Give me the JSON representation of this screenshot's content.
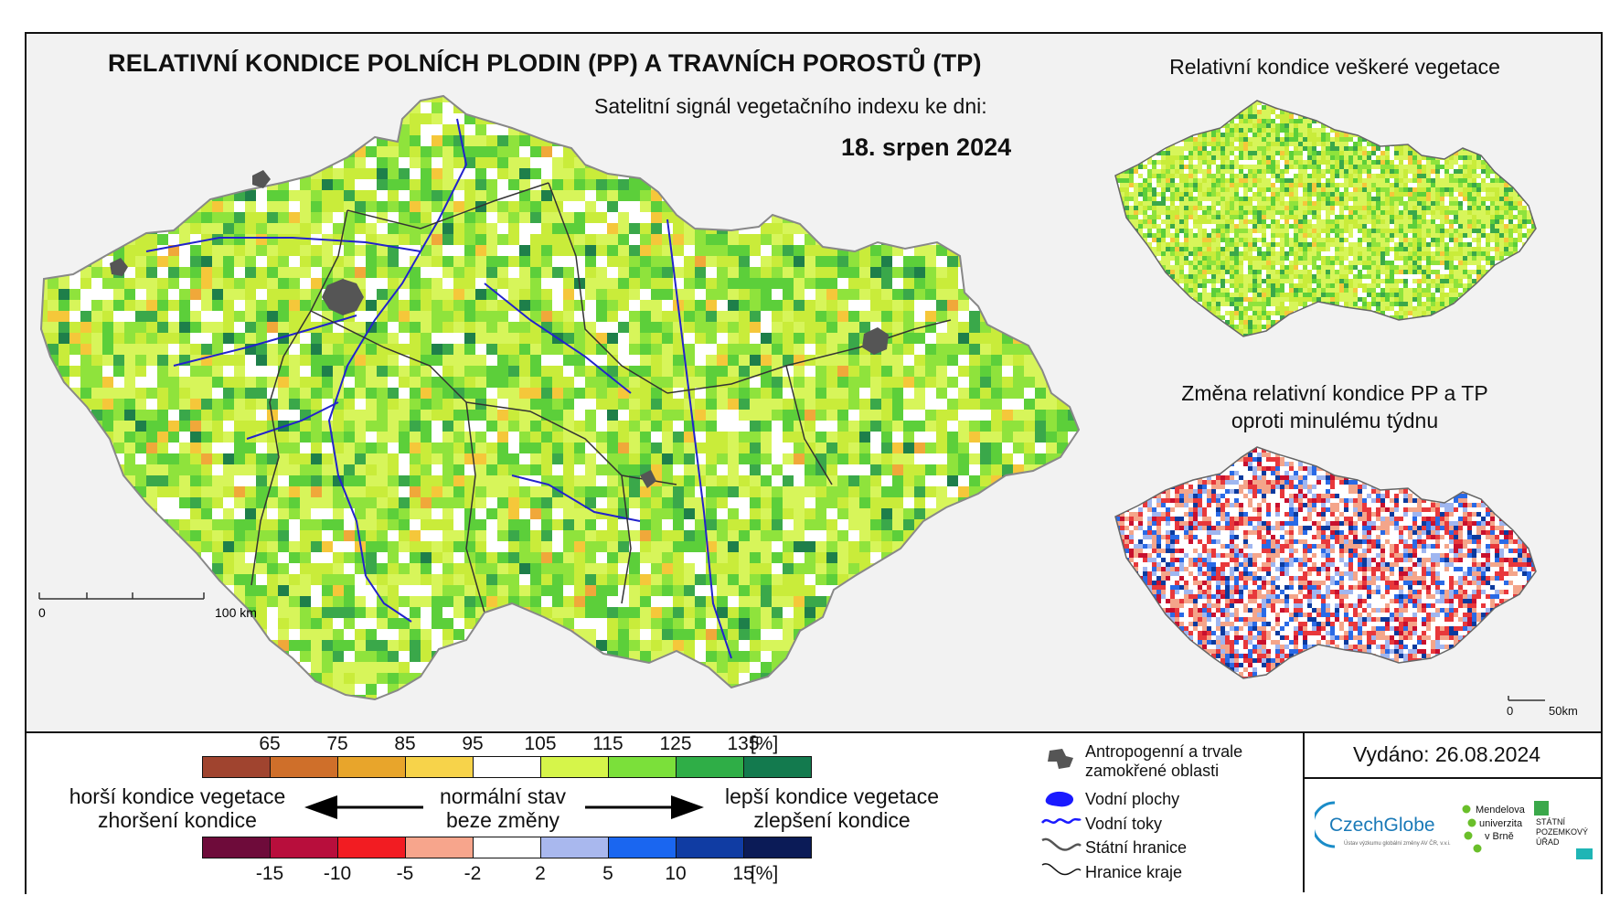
{
  "title": "RELATIVNÍ KONDICE POLNÍCH PLODIN (PP) A TRAVNÍCH POROSTŮ (TP)",
  "subtitle": "Satelitní signál vegetačního indexu ke dni:",
  "date": "18. srpen 2024",
  "inset_top": {
    "title": "Relativní kondice veškeré vegetace",
    "palette": [
      "#ffffff",
      "#d7f55a",
      "#c9ec3a",
      "#8fe33c",
      "#5ccf3a",
      "#3aa84a",
      "#f5c73a"
    ]
  },
  "inset_bottom": {
    "title_line1": "Změna relativní kondice PP a TP",
    "title_line2": "oproti minulému týdnu",
    "scale_start": "0",
    "scale_end": "50km",
    "palette": [
      "#ffffff",
      "#f4a58a",
      "#e8383b",
      "#c8102e",
      "#2a6ae6",
      "#9fb6f0",
      "#0b3a9e"
    ]
  },
  "main_map": {
    "scale_start": "0",
    "scale_end": "100 km",
    "palette": [
      "#ffffff",
      "#d7f55a",
      "#c9ec3a",
      "#8fe33c",
      "#5ccf3a",
      "#3aa84a",
      "#1e7f4a",
      "#f5c73a",
      "#f0a83a"
    ]
  },
  "legend_top": {
    "ticks": [
      "65",
      "75",
      "85",
      "95",
      "105",
      "115",
      "125",
      "135",
      "[%]"
    ],
    "colors": [
      "#a0442f",
      "#cf6f2a",
      "#e8a52b",
      "#f7d34a",
      "#ffffff",
      "#d6f54a",
      "#7be03a",
      "#2fae47",
      "#137a4e"
    ]
  },
  "legend_bottom": {
    "ticks": [
      "-15",
      "-10",
      "-5",
      "-2",
      "2",
      "5",
      "10",
      "15",
      "[%]"
    ],
    "colors": [
      "#6e0b3a",
      "#b80e3c",
      "#f21c22",
      "#f7a58c",
      "#ffffff",
      "#a9b8ee",
      "#1a66f0",
      "#103ca3",
      "#0b1b57"
    ]
  },
  "left_text": {
    "line1": "horší kondice vegetace",
    "line2": "zhoršení kondice"
  },
  "center_text": {
    "line1": "normální stav",
    "line2": "beze změny"
  },
  "right_text": {
    "line1": "lepší kondice vegetace",
    "line2": "zlepšení kondice"
  },
  "symbols": {
    "urban": "Antropogenní a trvale zamokřené oblasti",
    "urban_line1": "Antropogenní a trvale",
    "urban_line2": "zamokřené oblasti",
    "water_bodies": "Vodní plochy",
    "rivers": "Vodní toky",
    "state_border": "Státní hranice",
    "region_border": "Hranice kraje"
  },
  "issued": "Vydáno: 26.08.2024",
  "logos": {
    "czechglobe": "CzechGlobe",
    "czechglobe_sub": "Ústav výzkumu globální změny AV ČR, v.v.i.",
    "mendel_line1": "Mendelova",
    "mendel_line2": "univerzita",
    "mendel_line3": "v Brně",
    "spu_line1": "STÁTNÍ",
    "spu_line2": "POZEMKOVÝ",
    "spu_line3": "ÚŘAD"
  }
}
